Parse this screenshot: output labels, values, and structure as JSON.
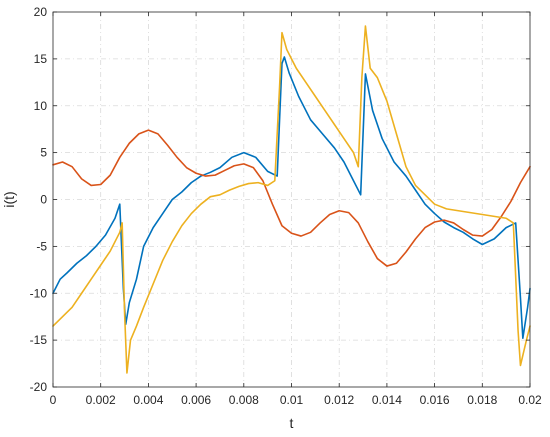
{
  "chart_data": {
    "type": "line",
    "title": "",
    "xlabel": "t",
    "ylabel": "i(t)",
    "xlim": [
      0,
      0.02
    ],
    "ylim": [
      -20,
      20
    ],
    "grid": true,
    "x_ticks": [
      0,
      0.002,
      0.004,
      0.006,
      0.008,
      0.01,
      0.012,
      0.014,
      0.016,
      0.018,
      0.02
    ],
    "x_tick_labels": [
      "0",
      "0.002",
      "0.004",
      "0.006",
      "0.008",
      "0.01",
      "0.012",
      "0.014",
      "0.016",
      "0.018",
      "0.02"
    ],
    "y_ticks": [
      -20,
      -15,
      -10,
      -5,
      0,
      5,
      10,
      15,
      20
    ],
    "y_tick_labels": [
      "-20",
      "-15",
      "-10",
      "-5",
      "0",
      "5",
      "10",
      "15",
      "20"
    ],
    "series": [
      {
        "color": "#0072BD",
        "points": [
          [
            0,
            -10
          ],
          [
            0.0003,
            -8.5
          ],
          [
            0.0006,
            -7.8
          ],
          [
            0.001,
            -6.8
          ],
          [
            0.0014,
            -6.0
          ],
          [
            0.0018,
            -5.0
          ],
          [
            0.0022,
            -3.8
          ],
          [
            0.0026,
            -2.0
          ],
          [
            0.0028,
            -0.5
          ],
          [
            0.00295,
            -9.5
          ],
          [
            0.00305,
            -13.3
          ],
          [
            0.0032,
            -11.0
          ],
          [
            0.0035,
            -8.5
          ],
          [
            0.0038,
            -5.0
          ],
          [
            0.0042,
            -3.0
          ],
          [
            0.0046,
            -1.5
          ],
          [
            0.005,
            0
          ],
          [
            0.0054,
            0.8
          ],
          [
            0.0058,
            1.8
          ],
          [
            0.0062,
            2.5
          ],
          [
            0.0066,
            2.9
          ],
          [
            0.007,
            3.4
          ],
          [
            0.0075,
            4.5
          ],
          [
            0.008,
            5.0
          ],
          [
            0.0085,
            4.5
          ],
          [
            0.009,
            3.0
          ],
          [
            0.0094,
            2.5
          ],
          [
            0.0096,
            14.5
          ],
          [
            0.0097,
            15.2
          ],
          [
            0.0099,
            13.5
          ],
          [
            0.0103,
            11.0
          ],
          [
            0.0108,
            8.5
          ],
          [
            0.0113,
            7.0
          ],
          [
            0.0118,
            5.5
          ],
          [
            0.0122,
            4.0
          ],
          [
            0.0126,
            2.0
          ],
          [
            0.0129,
            0.5
          ],
          [
            0.0131,
            13.4
          ],
          [
            0.0134,
            9.5
          ],
          [
            0.0138,
            6.5
          ],
          [
            0.0143,
            4.0
          ],
          [
            0.0148,
            2.5
          ],
          [
            0.0152,
            1.0
          ],
          [
            0.0156,
            -0.5
          ],
          [
            0.016,
            -1.5
          ],
          [
            0.0164,
            -2.4
          ],
          [
            0.0168,
            -3.0
          ],
          [
            0.0172,
            -3.5
          ],
          [
            0.0176,
            -4.2
          ],
          [
            0.018,
            -4.8
          ],
          [
            0.0185,
            -4.2
          ],
          [
            0.019,
            -3.0
          ],
          [
            0.0194,
            -2.5
          ],
          [
            0.0196,
            -10.5
          ],
          [
            0.0197,
            -14.8
          ],
          [
            0.0199,
            -11.5
          ],
          [
            0.02,
            -9.5
          ]
        ]
      },
      {
        "color": "#D95319",
        "points": [
          [
            0,
            3.7
          ],
          [
            0.0004,
            4.0
          ],
          [
            0.0008,
            3.5
          ],
          [
            0.0012,
            2.2
          ],
          [
            0.0016,
            1.5
          ],
          [
            0.002,
            1.6
          ],
          [
            0.0024,
            2.6
          ],
          [
            0.0028,
            4.5
          ],
          [
            0.0032,
            6.0
          ],
          [
            0.0036,
            7.0
          ],
          [
            0.004,
            7.4
          ],
          [
            0.0044,
            7.0
          ],
          [
            0.0048,
            5.8
          ],
          [
            0.0052,
            4.5
          ],
          [
            0.0056,
            3.4
          ],
          [
            0.006,
            2.8
          ],
          [
            0.0064,
            2.5
          ],
          [
            0.0068,
            2.6
          ],
          [
            0.0072,
            3.1
          ],
          [
            0.0076,
            3.6
          ],
          [
            0.008,
            3.8
          ],
          [
            0.0084,
            3.4
          ],
          [
            0.0088,
            2.0
          ],
          [
            0.0092,
            -0.5
          ],
          [
            0.0096,
            -2.8
          ],
          [
            0.01,
            -3.6
          ],
          [
            0.0104,
            -3.9
          ],
          [
            0.0108,
            -3.5
          ],
          [
            0.0112,
            -2.5
          ],
          [
            0.0116,
            -1.6
          ],
          [
            0.012,
            -1.2
          ],
          [
            0.0124,
            -1.4
          ],
          [
            0.0128,
            -2.5
          ],
          [
            0.0132,
            -4.5
          ],
          [
            0.0136,
            -6.3
          ],
          [
            0.014,
            -7.1
          ],
          [
            0.0144,
            -6.8
          ],
          [
            0.0148,
            -5.6
          ],
          [
            0.0152,
            -4.2
          ],
          [
            0.0156,
            -3.0
          ],
          [
            0.016,
            -2.4
          ],
          [
            0.0164,
            -2.2
          ],
          [
            0.0168,
            -2.5
          ],
          [
            0.0172,
            -3.2
          ],
          [
            0.0176,
            -3.8
          ],
          [
            0.018,
            -3.9
          ],
          [
            0.0184,
            -3.2
          ],
          [
            0.0188,
            -1.8
          ],
          [
            0.0192,
            -0.2
          ],
          [
            0.0196,
            1.8
          ],
          [
            0.02,
            3.5
          ]
        ]
      },
      {
        "color": "#EDB120",
        "points": [
          [
            0,
            -13.5
          ],
          [
            0.0004,
            -12.5
          ],
          [
            0.0008,
            -11.5
          ],
          [
            0.0012,
            -10.0
          ],
          [
            0.0016,
            -8.5
          ],
          [
            0.002,
            -7.0
          ],
          [
            0.0024,
            -5.5
          ],
          [
            0.0028,
            -3.5
          ],
          [
            0.0029,
            -2.5
          ],
          [
            0.003,
            -12.0
          ],
          [
            0.0031,
            -18.5
          ],
          [
            0.00325,
            -15.0
          ],
          [
            0.0035,
            -13.5
          ],
          [
            0.0038,
            -11.5
          ],
          [
            0.0042,
            -9.0
          ],
          [
            0.0046,
            -6.5
          ],
          [
            0.005,
            -4.5
          ],
          [
            0.0054,
            -2.8
          ],
          [
            0.0058,
            -1.5
          ],
          [
            0.0062,
            -0.5
          ],
          [
            0.0066,
            0.3
          ],
          [
            0.007,
            0.5
          ],
          [
            0.0074,
            1.0
          ],
          [
            0.0078,
            1.4
          ],
          [
            0.0082,
            1.7
          ],
          [
            0.0086,
            1.8
          ],
          [
            0.009,
            1.5
          ],
          [
            0.0093,
            2.0
          ],
          [
            0.0095,
            12.0
          ],
          [
            0.0096,
            17.8
          ],
          [
            0.0098,
            16.0
          ],
          [
            0.0102,
            14.0
          ],
          [
            0.0106,
            12.5
          ],
          [
            0.011,
            11.0
          ],
          [
            0.0114,
            9.5
          ],
          [
            0.0118,
            8.0
          ],
          [
            0.0122,
            6.5
          ],
          [
            0.0126,
            5.0
          ],
          [
            0.0128,
            3.5
          ],
          [
            0.01295,
            13.0
          ],
          [
            0.0131,
            18.5
          ],
          [
            0.0133,
            14.0
          ],
          [
            0.0136,
            13.0
          ],
          [
            0.014,
            10.5
          ],
          [
            0.0144,
            7.0
          ],
          [
            0.0148,
            3.5
          ],
          [
            0.0152,
            1.5
          ],
          [
            0.0156,
            0.5
          ],
          [
            0.016,
            -0.5
          ],
          [
            0.0165,
            -1.0
          ],
          [
            0.017,
            -1.2
          ],
          [
            0.0175,
            -1.4
          ],
          [
            0.018,
            -1.6
          ],
          [
            0.0185,
            -1.8
          ],
          [
            0.019,
            -2.0
          ],
          [
            0.0193,
            -2.5
          ],
          [
            0.0195,
            -14.0
          ],
          [
            0.0196,
            -17.7
          ],
          [
            0.01985,
            -15.0
          ],
          [
            0.02,
            -13.5
          ]
        ]
      }
    ]
  }
}
